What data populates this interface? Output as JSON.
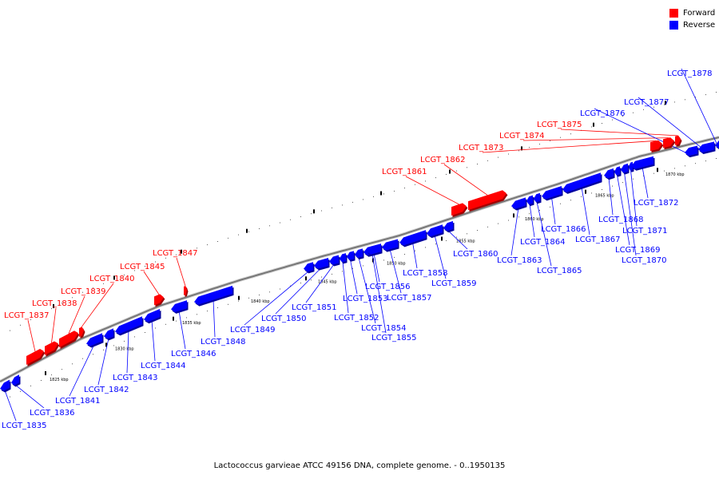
{
  "caption": "Lactococcus garvieae ATCC 49156 DNA, complete genome. - 0..1950135",
  "legend": {
    "forward_label": "Forward",
    "reverse_label": "Reverse",
    "forward_color": "#ff0000",
    "reverse_color": "#0000ff"
  },
  "kbp_ticks": [
    "1825 kbp",
    "1830 kbp",
    "1835 kbp",
    "1840 kbp",
    "1845 kbp",
    "1850 kbp",
    "1855 kbp",
    "1860 kbp",
    "1865 kbp",
    "1870 kbp"
  ],
  "genes": [
    {
      "name": "LCGT_1835",
      "strand": "reverse"
    },
    {
      "name": "LCGT_1836",
      "strand": "reverse"
    },
    {
      "name": "LCGT_1837",
      "strand": "forward"
    },
    {
      "name": "LCGT_1838",
      "strand": "forward"
    },
    {
      "name": "LCGT_1839",
      "strand": "forward"
    },
    {
      "name": "LCGT_1840",
      "strand": "forward"
    },
    {
      "name": "LCGT_1841",
      "strand": "reverse"
    },
    {
      "name": "LCGT_1842",
      "strand": "reverse"
    },
    {
      "name": "LCGT_1843",
      "strand": "reverse"
    },
    {
      "name": "LCGT_1844",
      "strand": "reverse"
    },
    {
      "name": "LCGT_1845",
      "strand": "forward"
    },
    {
      "name": "LCGT_1846",
      "strand": "reverse"
    },
    {
      "name": "LCGT_1847",
      "strand": "forward"
    },
    {
      "name": "LCGT_1848",
      "strand": "reverse"
    },
    {
      "name": "LCGT_1849",
      "strand": "reverse"
    },
    {
      "name": "LCGT_1850",
      "strand": "reverse"
    },
    {
      "name": "LCGT_1851",
      "strand": "reverse"
    },
    {
      "name": "LCGT_1852",
      "strand": "reverse"
    },
    {
      "name": "LCGT_1853",
      "strand": "reverse"
    },
    {
      "name": "LCGT_1854",
      "strand": "reverse"
    },
    {
      "name": "LCGT_1855",
      "strand": "reverse"
    },
    {
      "name": "LCGT_1856",
      "strand": "reverse"
    },
    {
      "name": "LCGT_1857",
      "strand": "reverse"
    },
    {
      "name": "LCGT_1858",
      "strand": "reverse"
    },
    {
      "name": "LCGT_1859",
      "strand": "reverse"
    },
    {
      "name": "LCGT_1860",
      "strand": "reverse"
    },
    {
      "name": "LCGT_1861",
      "strand": "forward"
    },
    {
      "name": "LCGT_1862",
      "strand": "forward"
    },
    {
      "name": "LCGT_1863",
      "strand": "reverse"
    },
    {
      "name": "LCGT_1864",
      "strand": "reverse"
    },
    {
      "name": "LCGT_1865",
      "strand": "reverse"
    },
    {
      "name": "LCGT_1866",
      "strand": "reverse"
    },
    {
      "name": "LCGT_1867",
      "strand": "reverse"
    },
    {
      "name": "LCGT_1868",
      "strand": "reverse"
    },
    {
      "name": "LCGT_1869",
      "strand": "reverse"
    },
    {
      "name": "LCGT_1870",
      "strand": "reverse"
    },
    {
      "name": "LCGT_1871",
      "strand": "reverse"
    },
    {
      "name": "LCGT_1872",
      "strand": "reverse"
    },
    {
      "name": "LCGT_1873",
      "strand": "forward"
    },
    {
      "name": "LCGT_1874",
      "strand": "forward"
    },
    {
      "name": "LCGT_1875",
      "strand": "forward"
    },
    {
      "name": "LCGT_1876",
      "strand": "reverse"
    },
    {
      "name": "LCGT_1877",
      "strand": "reverse"
    },
    {
      "name": "LCGT_1878",
      "strand": "reverse"
    }
  ]
}
